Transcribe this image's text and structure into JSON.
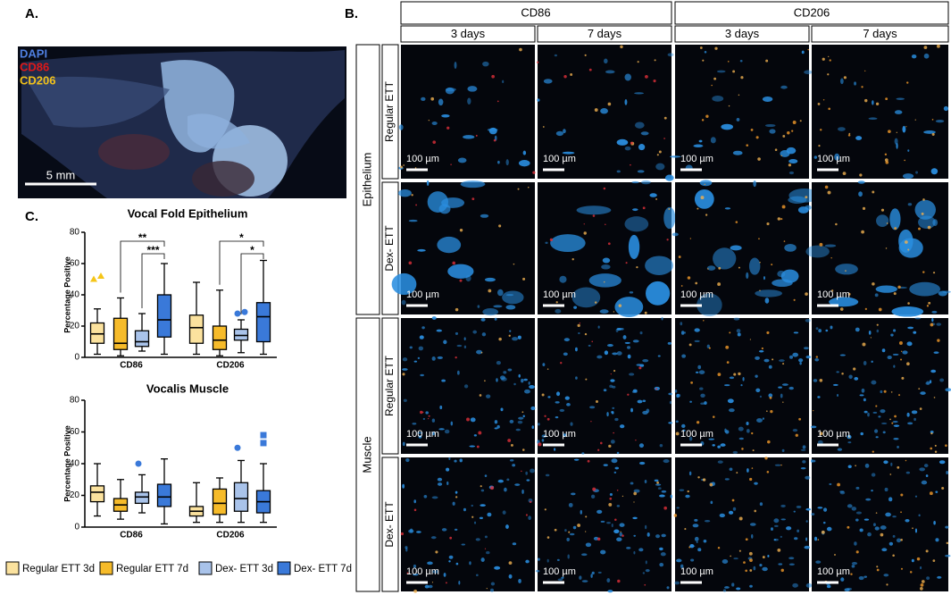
{
  "panels": {
    "a": "A.",
    "b": "B.",
    "c": "C."
  },
  "overview": {
    "stains": [
      {
        "name": "DAPI",
        "color": "#4f7fe0"
      },
      {
        "name": "CD86",
        "color": "#e01818"
      },
      {
        "name": "CD206",
        "color": "#f2c21a"
      }
    ],
    "scale": "5 mm"
  },
  "microscopy": {
    "markers": [
      "CD86",
      "CD206"
    ],
    "times": [
      "3 days",
      "7 days",
      "3 days",
      "7 days"
    ],
    "tissues": [
      "Epithelium",
      "Muscle"
    ],
    "rows": [
      "Regular ETT",
      "Dex- ETT",
      "Regular ETT",
      "Dex- ETT"
    ],
    "scale_bars": [
      "100 µm",
      "100 µm",
      "100 µm",
      "100 µm",
      "100 µm",
      "100 µm",
      "100 µm",
      "100 µm",
      "100 µm",
      "100 µm",
      "100 µm",
      "100 µm",
      "100 µm",
      "100 µm",
      "100 µm",
      "100 µm"
    ]
  },
  "chart_data": [
    {
      "type": "box",
      "title": "Vocal Fold Epithelium",
      "ylabel": "Percentage Positive",
      "categories": [
        "CD86",
        "CD206"
      ],
      "ylim": [
        0,
        80
      ],
      "yticks": [
        0,
        20,
        40,
        60,
        80
      ],
      "series": [
        {
          "name": "Regular ETT 3d",
          "color": "#fbe29e",
          "marker": "triangle",
          "boxes": [
            {
              "min": 2,
              "q1": 9,
              "median": 15,
              "q3": 22,
              "max": 31,
              "outliers": [
                50,
                52
              ]
            },
            {
              "min": 2,
              "q1": 9,
              "median": 19,
              "q3": 27,
              "max": 48,
              "outliers": []
            }
          ]
        },
        {
          "name": "Regular ETT 7d",
          "color": "#f6bb2a",
          "marker": "circle",
          "boxes": [
            {
              "min": 1,
              "q1": 5,
              "median": 9,
              "q3": 25,
              "max": 38,
              "outliers": []
            },
            {
              "min": 1,
              "q1": 5,
              "median": 11,
              "q3": 20,
              "max": 43,
              "outliers": []
            }
          ]
        },
        {
          "name": "Dex- ETT 3d",
          "color": "#a9c3ea",
          "marker": "circle",
          "boxes": [
            {
              "min": 4,
              "q1": 7,
              "median": 10,
              "q3": 17,
              "max": 28,
              "outliers": []
            },
            {
              "min": 3,
              "q1": 11,
              "median": 14,
              "q3": 18,
              "max": 24,
              "outliers": [
                28,
                29
              ]
            }
          ]
        },
        {
          "name": "Dex- ETT 7d",
          "color": "#3a79d9",
          "marker": "circle",
          "boxes": [
            {
              "min": 2,
              "q1": 13,
              "median": 24,
              "q3": 40,
              "max": 60,
              "outliers": []
            },
            {
              "min": 2,
              "q1": 10,
              "median": 26,
              "q3": 35,
              "max": 62,
              "outliers": []
            }
          ]
        }
      ],
      "significance": [
        {
          "category": 0,
          "from": 1,
          "to": 3,
          "label": "**"
        },
        {
          "category": 0,
          "from": 2,
          "to": 3,
          "label": "***"
        },
        {
          "category": 1,
          "from": 1,
          "to": 3,
          "label": "*"
        },
        {
          "category": 1,
          "from": 2,
          "to": 3,
          "label": "*"
        }
      ]
    },
    {
      "type": "box",
      "title": "Vocalis Muscle",
      "ylabel": "Percentage Positive",
      "categories": [
        "CD86",
        "CD206"
      ],
      "ylim": [
        0,
        80
      ],
      "yticks": [
        0,
        20,
        40,
        60,
        80
      ],
      "series": [
        {
          "color": "#fbe29e",
          "marker": "circle",
          "boxes": [
            {
              "min": 7,
              "q1": 16,
              "median": 22,
              "q3": 26,
              "max": 40,
              "outliers": []
            },
            {
              "min": 3,
              "q1": 7,
              "median": 10,
              "q3": 13,
              "max": 28,
              "outliers": []
            }
          ]
        },
        {
          "color": "#f6bb2a",
          "marker": "circle",
          "boxes": [
            {
              "min": 5,
              "q1": 10,
              "median": 14,
              "q3": 18,
              "max": 30,
              "outliers": []
            },
            {
              "min": 3,
              "q1": 8,
              "median": 15,
              "q3": 24,
              "max": 31,
              "outliers": []
            }
          ]
        },
        {
          "color": "#a9c3ea",
          "marker": "circle",
          "boxes": [
            {
              "min": 9,
              "q1": 15,
              "median": 19,
              "q3": 22,
              "max": 33,
              "outliers": [
                40
              ]
            },
            {
              "min": 3,
              "q1": 10,
              "median": 18,
              "q3": 28,
              "max": 42,
              "outliers": [
                50
              ]
            }
          ]
        },
        {
          "color": "#3a79d9",
          "marker": "square",
          "boxes": [
            {
              "min": 2,
              "q1": 13,
              "median": 19,
              "q3": 27,
              "max": 43,
              "outliers": []
            },
            {
              "min": 3,
              "q1": 9,
              "median": 16,
              "q3": 23,
              "max": 40,
              "outliers": [
                53,
                58
              ]
            }
          ]
        }
      ],
      "significance": []
    }
  ]
}
